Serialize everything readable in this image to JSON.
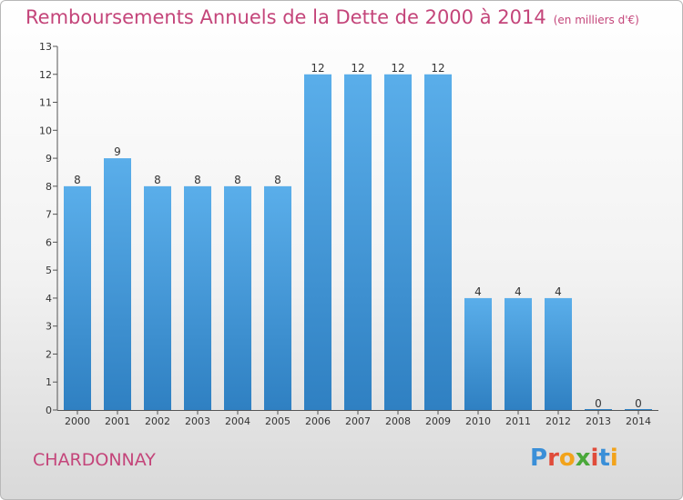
{
  "title": "Remboursements Annuels de la Dette de 2000 à 2014",
  "unit": "(en milliers d'€)",
  "commune": "CHARDONNAY",
  "logo": {
    "letters": [
      {
        "ch": "P",
        "color": "#3a8fd8"
      },
      {
        "ch": "r",
        "color": "#e04b3a"
      },
      {
        "ch": "o",
        "color": "#f2a31b"
      },
      {
        "ch": "x",
        "color": "#4aa83a"
      },
      {
        "ch": "i",
        "color": "#e04b3a"
      },
      {
        "ch": "t",
        "color": "#3a8fd8"
      },
      {
        "ch": "i",
        "color": "#f2a31b"
      }
    ]
  },
  "colors": {
    "bar_top": "#5aaeea",
    "bar_bottom": "#2f80c2",
    "title": "#c4457a"
  },
  "chart_data": {
    "type": "bar",
    "categories": [
      "2000",
      "2001",
      "2002",
      "2003",
      "2004",
      "2005",
      "2006",
      "2007",
      "2008",
      "2009",
      "2010",
      "2011",
      "2012",
      "2013",
      "2014"
    ],
    "values": [
      8,
      9,
      8,
      8,
      8,
      8,
      12,
      12,
      12,
      12,
      4,
      4,
      4,
      0,
      0
    ],
    "ylim": [
      0,
      13
    ],
    "yticks": [
      0,
      1,
      2,
      3,
      4,
      5,
      6,
      7,
      8,
      9,
      10,
      11,
      12,
      13
    ],
    "grid": false,
    "data_labels": true
  }
}
